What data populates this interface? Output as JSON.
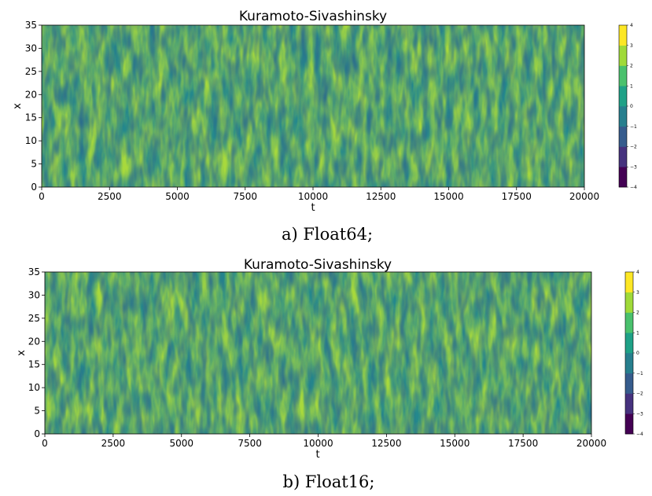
{
  "chart_data": [
    {
      "type": "heatmap",
      "panel_caption": "a) Float64;",
      "title": "Kuramoto-Sivashinsky",
      "xlabel": "t",
      "ylabel": "x",
      "xlim": [
        0,
        20000
      ],
      "ylim": [
        0,
        35
      ],
      "x_ticks": [
        "0",
        "2500",
        "5000",
        "7500",
        "10000",
        "12500",
        "15000",
        "17500",
        "20000"
      ],
      "y_ticks": [
        "0",
        "5",
        "10",
        "15",
        "20",
        "25",
        "30",
        "35"
      ],
      "colormap": "viridis",
      "colorbar": {
        "range": [
          -4,
          4
        ],
        "ticks": [
          "4",
          "3",
          "2",
          "1",
          "0",
          "−1",
          "−2",
          "−3",
          "−4"
        ],
        "colors": [
          "#440154",
          "#46327e",
          "#365c8d",
          "#277f8e",
          "#1fa187",
          "#4ac16d",
          "#a0da39",
          "#fde725"
        ]
      }
    },
    {
      "type": "heatmap",
      "panel_caption": "b) Float16;",
      "title": "Kuramoto-Sivashinsky",
      "xlabel": "t",
      "ylabel": "x",
      "xlim": [
        0,
        20000
      ],
      "ylim": [
        0,
        35
      ],
      "x_ticks": [
        "0",
        "2500",
        "5000",
        "7500",
        "10000",
        "12500",
        "15000",
        "17500",
        "20000"
      ],
      "y_ticks": [
        "0",
        "5",
        "10",
        "15",
        "20",
        "25",
        "30",
        "35"
      ],
      "colormap": "viridis",
      "colorbar": {
        "range": [
          -4,
          4
        ],
        "ticks": [
          "4",
          "3",
          "2",
          "1",
          "0",
          "−1",
          "−2",
          "−3",
          "−4"
        ],
        "colors": [
          "#440154",
          "#46327e",
          "#365c8d",
          "#277f8e",
          "#1fa187",
          "#4ac16d",
          "#a0da39",
          "#fde725"
        ]
      }
    }
  ]
}
